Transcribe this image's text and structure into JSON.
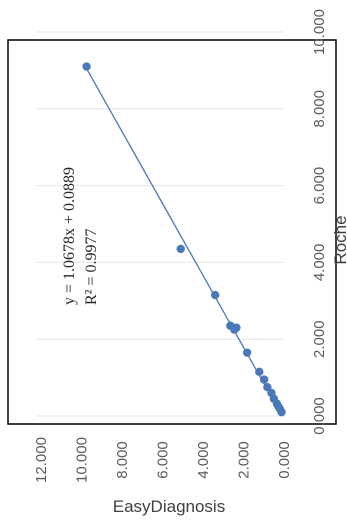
{
  "chart_data": {
    "type": "scatter",
    "xlabel": "Roche",
    "ylabel": "EasyDiagnosis",
    "xlim": [
      0,
      10
    ],
    "ylim": [
      0,
      12
    ],
    "x_ticks": [
      "0.000",
      "2.000",
      "4.000",
      "6.000",
      "8.000",
      "10.000"
    ],
    "y_ticks": [
      "0.000",
      "2.000",
      "4.000",
      "6.000",
      "8.000",
      "10.000",
      "12.000"
    ],
    "trendline": {
      "slope": 1.0678,
      "intercept": 0.0889,
      "equation": "y = 1.0678x + 0.0889",
      "r_squared": "R² = 0.9977"
    },
    "points": [
      {
        "x": 0.1,
        "y": 0.12
      },
      {
        "x": 0.18,
        "y": 0.2
      },
      {
        "x": 0.25,
        "y": 0.28
      },
      {
        "x": 0.32,
        "y": 0.35
      },
      {
        "x": 0.45,
        "y": 0.5
      },
      {
        "x": 0.6,
        "y": 0.62
      },
      {
        "x": 0.75,
        "y": 0.82
      },
      {
        "x": 0.95,
        "y": 0.98
      },
      {
        "x": 1.15,
        "y": 1.22
      },
      {
        "x": 1.65,
        "y": 1.82
      },
      {
        "x": 2.25,
        "y": 2.45
      },
      {
        "x": 2.3,
        "y": 2.35
      },
      {
        "x": 2.35,
        "y": 2.65
      },
      {
        "x": 3.15,
        "y": 3.4
      },
      {
        "x": 4.35,
        "y": 5.1
      },
      {
        "x": 9.1,
        "y": 9.75
      }
    ],
    "colors": {
      "marker": "#4a78b8",
      "line": "#4a78b8",
      "frame": "#000000"
    }
  }
}
